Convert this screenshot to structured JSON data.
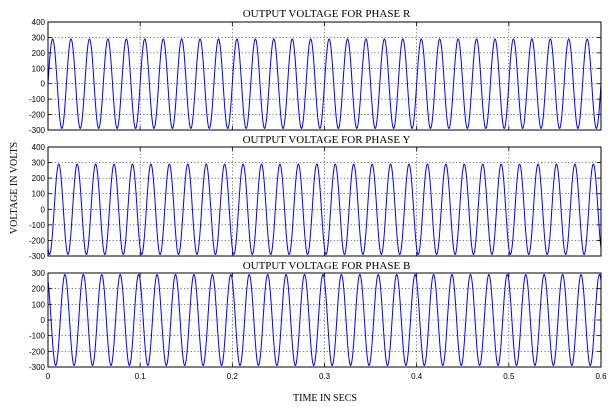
{
  "colors": {
    "wave": "#0000ff",
    "axes": "#000000",
    "background": "#ffffff"
  },
  "chart_data": {
    "type": "line",
    "ylabel": "VOLTAGE IN VOLTS",
    "xlabel": "TIME IN SECS",
    "xlim": [
      0,
      0.6
    ],
    "xticks": [
      "0",
      "0.1",
      "0.2",
      "0.3",
      "0.4",
      "0.5",
      "0.6"
    ],
    "grid": true,
    "subplots": [
      {
        "title": "OUTPUT VOLTAGE FOR PHASE R",
        "ylim": [
          -300,
          400
        ],
        "yticks": [
          400,
          300,
          200,
          100,
          0,
          -100,
          -200,
          -300
        ],
        "series": [
          {
            "amplitude": 290,
            "frequency_hz": 50,
            "phase_deg": 0
          }
        ]
      },
      {
        "title": "OUTPUT VOLTAGE FOR PHASE Y",
        "ylim": [
          -300,
          400
        ],
        "yticks": [
          400,
          300,
          200,
          100,
          0,
          -100,
          -200,
          -300
        ],
        "series": [
          {
            "amplitude": 290,
            "frequency_hz": 50,
            "phase_deg": -120
          }
        ]
      },
      {
        "title": "OUTPUT VOLTAGE FOR PHASE B",
        "ylim": [
          -300,
          300
        ],
        "yticks": [
          300,
          200,
          100,
          0,
          -100,
          -200,
          -300
        ],
        "series": [
          {
            "amplitude": 290,
            "frequency_hz": 50,
            "phase_deg": 120
          }
        ]
      }
    ]
  }
}
